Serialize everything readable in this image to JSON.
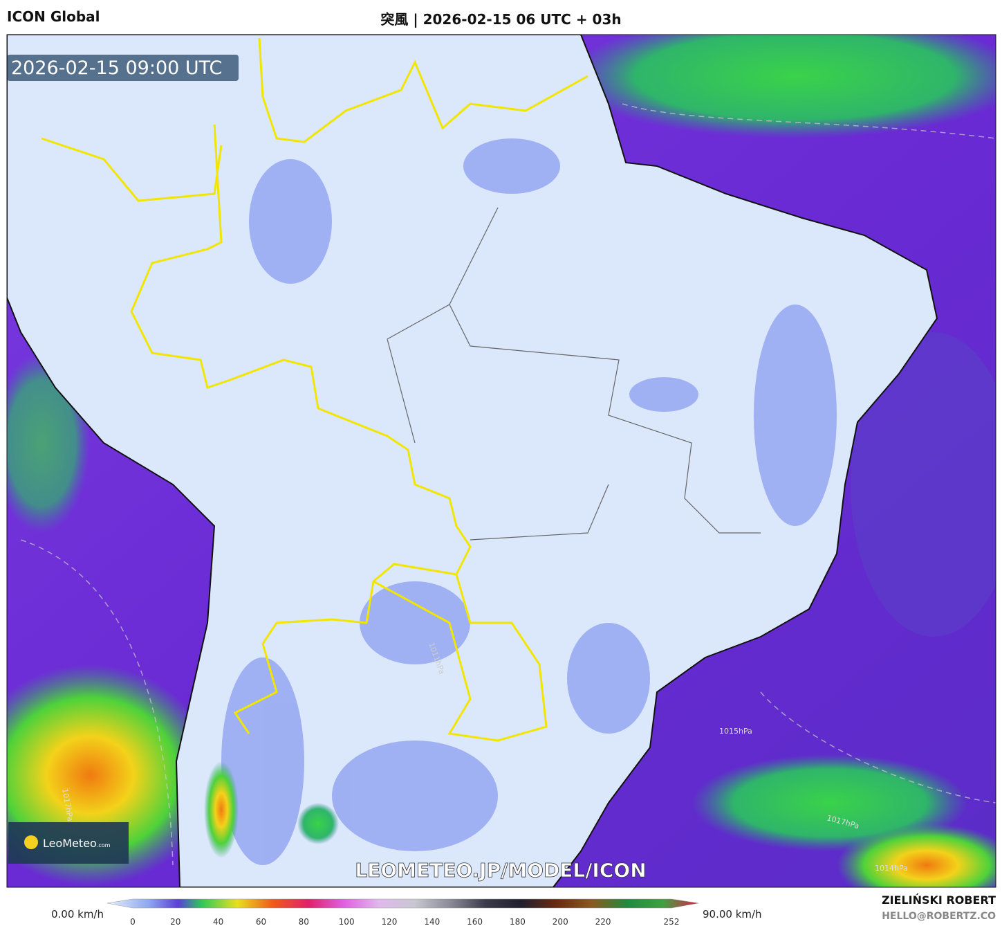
{
  "header": {
    "model": "ICON Global",
    "title": "突風 | 2026-02-15 06 UTC + 03h"
  },
  "map": {
    "valid_time": "2026-02-15 09:00 UTC",
    "watermark": "LEOMETEO.JP/MODEL/ICON",
    "logo": {
      "name": "LeoMeteo",
      "suffix": ".com"
    },
    "isobar_labels": [
      "1015hPa",
      "1017hPa",
      "1017hPa",
      "1014hPa",
      "1011hPa"
    ]
  },
  "colorbar": {
    "min_label": "0.00 km/h",
    "max_label": "90.00 km/h",
    "ticks": [
      0,
      20,
      40,
      60,
      80,
      100,
      120,
      140,
      160,
      180,
      200,
      220,
      252
    ]
  },
  "footer": {
    "author": "ZIELIŃSKI ROBERT",
    "contact": "HELLO@ROBERTZ.CO"
  }
}
